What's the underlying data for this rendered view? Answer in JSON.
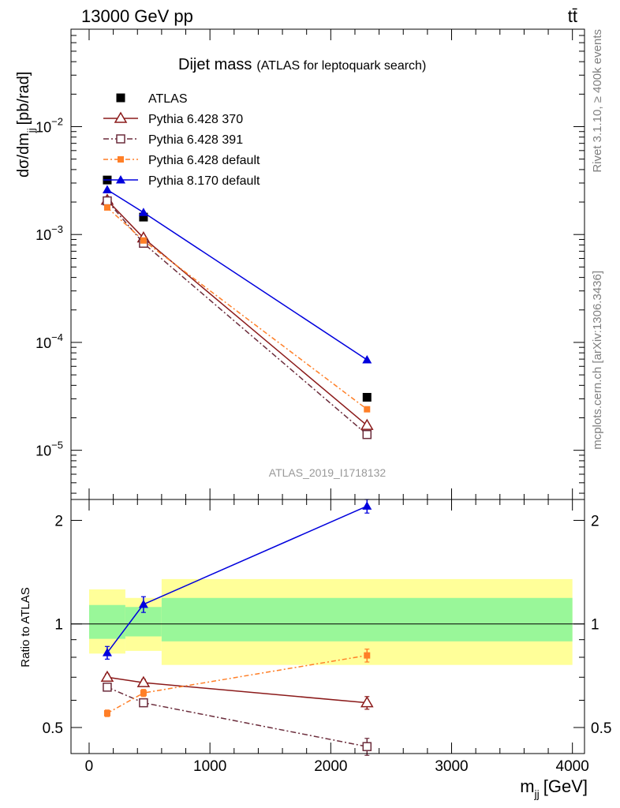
{
  "header": {
    "energy_label": "13000 GeV pp",
    "process_label": "tt̄"
  },
  "side_labels": {
    "rivet": "Rivet 3.1.10, ≥ 400k events",
    "mcplots": "mcplots.cern.ch [arXiv:1306.3436]"
  },
  "chart_data": [
    {
      "type": "line",
      "title": "Dijet mass",
      "subtitle": "(ATLAS for leptoquark search)",
      "analysis_id": "ATLAS_2019_I1718132",
      "ylabel": "dσ/dm",
      "ylabel_sub": "jj",
      "ylabel_unit": "[pb/rad]",
      "yscale": "log",
      "ylim": [
        3.5e-06,
        0.08
      ],
      "xlim": [
        -150,
        4100
      ],
      "yticks": [
        {
          "value": 1e-05,
          "mantissa": "10",
          "exp": "−5"
        },
        {
          "value": 0.0001,
          "mantissa": "10",
          "exp": "−4"
        },
        {
          "value": 0.001,
          "mantissa": "10",
          "exp": "−3"
        },
        {
          "value": 0.01,
          "mantissa": "10",
          "exp": "−2"
        }
      ],
      "legend_position": "top-left",
      "x": [
        150,
        450,
        2300
      ],
      "series": [
        {
          "name": "ATLAS",
          "color": "#000000",
          "marker": "square-filled",
          "line": "none",
          "values": [
            0.0032,
            0.00145,
            3.1e-05
          ]
        },
        {
          "name": "Pythia 6.428 370",
          "color": "#8b1a1a",
          "marker": "triangle-open",
          "line": "solid",
          "values": [
            0.00208,
            0.00093,
            1.7e-05
          ]
        },
        {
          "name": "Pythia 6.428 391",
          "color": "#6b2c3b",
          "marker": "square-open",
          "line": "dashdot",
          "values": [
            0.00205,
            0.00083,
            1.4e-05
          ]
        },
        {
          "name": "Pythia 6.428 default",
          "color": "#ff7f27",
          "marker": "square-filled-small",
          "line": "dashdot-orange",
          "values": [
            0.00178,
            0.00088,
            2.4e-05
          ]
        },
        {
          "name": "Pythia 8.170 default",
          "color": "#0000dd",
          "marker": "triangle-filled",
          "line": "solid",
          "values": [
            0.0026,
            0.0016,
            6.9e-05
          ]
        }
      ]
    },
    {
      "type": "line",
      "ylabel": "Ratio to ATLAS",
      "xlabel": "m",
      "xlabel_sub": "jj",
      "xlabel_unit": "[GeV]",
      "xlim": [
        -150,
        4100
      ],
      "ylim": [
        0.42,
        2.3
      ],
      "yscale": "log",
      "xticks": [
        0,
        1000,
        2000,
        3000,
        4000
      ],
      "yticks": [
        0.5,
        1,
        2
      ],
      "reference_line": 1,
      "bands": [
        {
          "x0": 0,
          "x1": 300,
          "inner": [
            0.905,
            1.135
          ],
          "outer": [
            0.82,
            1.26
          ]
        },
        {
          "x0": 300,
          "x1": 600,
          "inner": [
            0.92,
            1.12
          ],
          "outer": [
            0.835,
            1.19
          ]
        },
        {
          "x0": 600,
          "x1": 4000,
          "inner": [
            0.89,
            1.19
          ],
          "outer": [
            0.76,
            1.35
          ]
        }
      ],
      "band_colors": {
        "inner": "#99f799",
        "outer": "#ffff99"
      },
      "x": [
        150,
        450,
        2300
      ],
      "series": [
        {
          "name": "Pythia 6.428 370",
          "color": "#8b1a1a",
          "marker": "triangle-open",
          "line": "solid",
          "values": [
            0.7,
            0.675,
            0.59
          ],
          "err": [
            0.015,
            0.015,
            0.025
          ]
        },
        {
          "name": "Pythia 6.428 391",
          "color": "#6b2c3b",
          "marker": "square-open",
          "line": "dashdot",
          "values": [
            0.655,
            0.59,
            0.44
          ],
          "err": [
            0.015,
            0.015,
            0.025
          ]
        },
        {
          "name": "Pythia 6.428 default",
          "color": "#ff7f27",
          "marker": "square-filled-small",
          "line": "dashdot-orange",
          "values": [
            0.55,
            0.63,
            0.81
          ],
          "err": [
            0.012,
            0.015,
            0.035
          ]
        },
        {
          "name": "Pythia 8.170 default",
          "color": "#0000dd",
          "marker": "triangle-filled",
          "line": "solid",
          "values": [
            0.825,
            1.14,
            2.2
          ],
          "err": [
            0.035,
            0.06,
            0.1
          ]
        }
      ]
    }
  ]
}
